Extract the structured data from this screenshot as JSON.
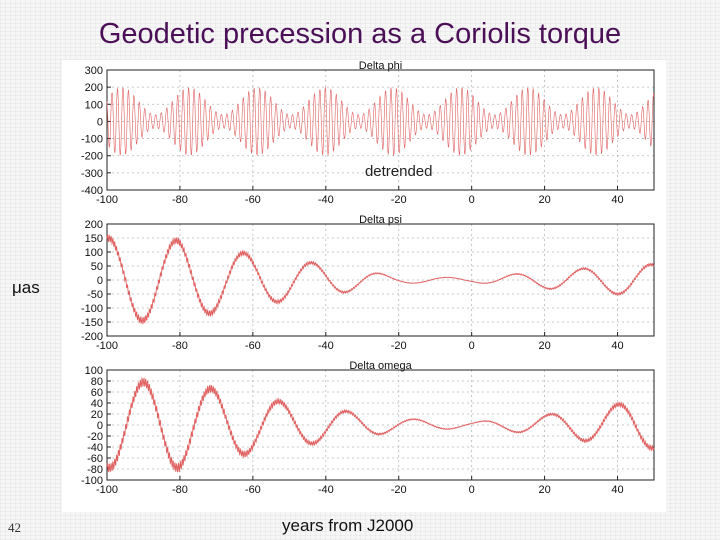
{
  "slide": {
    "title": "Geodetic precession as a Coriolis torque",
    "unit_label": "μas",
    "x_caption": "years from J2000",
    "page_number": "42"
  },
  "colors": {
    "title": "#4b0f57",
    "series": "#e06060",
    "grid": "#b8b8b8"
  },
  "chart_data": [
    {
      "type": "line",
      "title": "Delta phi",
      "xlim": [
        -100,
        50
      ],
      "ylim": [
        -400,
        300
      ],
      "xticks": [
        -100,
        -80,
        -60,
        -40,
        -20,
        0,
        20,
        40
      ],
      "yticks": [
        300,
        200,
        100,
        0,
        -100,
        -200,
        -300,
        -400
      ],
      "annotation": "detrended",
      "grid": true,
      "series_model": {
        "carrier_period_years": 1.5,
        "envelope_base": 120,
        "envelope_variation": 80,
        "envelope_period_years": 18.6,
        "envelope_phase_year": -96
      }
    },
    {
      "type": "line",
      "title": "Delta psi",
      "xlim": [
        -100,
        50
      ],
      "ylim": [
        -200,
        200
      ],
      "xticks": [
        -100,
        -80,
        -60,
        -40,
        -20,
        0,
        20,
        40
      ],
      "yticks": [
        200,
        150,
        100,
        50,
        0,
        -50,
        -100,
        -150,
        -200
      ],
      "grid": true,
      "series_model": {
        "oscillation_period_years": 18.6,
        "peak_year": -81,
        "amplitude_points": [
          [
            -100,
            150
          ],
          [
            -80,
            140
          ],
          [
            -60,
            90
          ],
          [
            -40,
            55
          ],
          [
            -20,
            12
          ],
          [
            0,
            8
          ],
          [
            20,
            30
          ],
          [
            45,
            55
          ]
        ],
        "ripple_amplitude_ratio": 0.08,
        "ripple_period_years": 0.5
      }
    },
    {
      "type": "line",
      "title": "Delta omega",
      "xlim": [
        -100,
        50
      ],
      "ylim": [
        -100,
        100
      ],
      "xticks": [
        -100,
        -80,
        -60,
        -40,
        -20,
        0,
        20,
        40
      ],
      "yticks": [
        100,
        80,
        60,
        40,
        20,
        0,
        -20,
        -40,
        -60,
        -80,
        -100
      ],
      "grid": true,
      "series_model": {
        "oscillation_period_years": 18.6,
        "peak_year": -90,
        "amplitude_points": [
          [
            -100,
            78
          ],
          [
            -80,
            78
          ],
          [
            -60,
            50
          ],
          [
            -40,
            30
          ],
          [
            -20,
            12
          ],
          [
            0,
            5
          ],
          [
            20,
            18
          ],
          [
            45,
            42
          ]
        ],
        "ripple_amplitude_ratio": 0.1,
        "ripple_period_years": 0.5
      }
    }
  ]
}
